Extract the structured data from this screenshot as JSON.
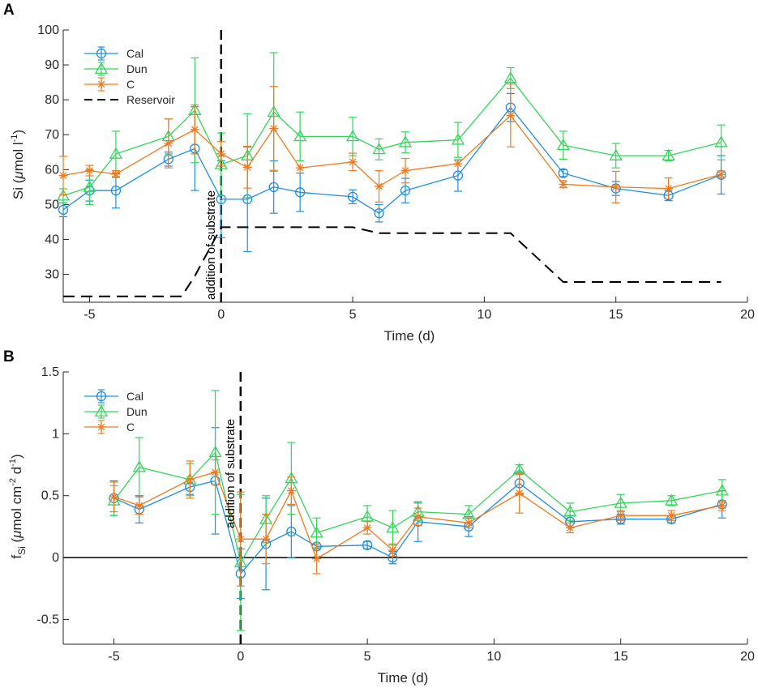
{
  "colors": {
    "Cal": "#1f8fe0",
    "Dun": "#33d65a",
    "C": "#f07a1e",
    "Reservoir": "#000000"
  },
  "chart_data": [
    {
      "panel": "A",
      "type": "line",
      "title": "",
      "xlabel": "Time (d)",
      "ylabel_prefix": "Si (",
      "ylabel_mu": "μ",
      "ylabel_mid": "mol l",
      "ylabel_sup": "-1",
      "ylabel_suffix": ")",
      "xlim": [
        -6,
        20
      ],
      "ylim": [
        22,
        100
      ],
      "xticks": [
        -5,
        0,
        5,
        10,
        15,
        20
      ],
      "xtick_labels": [
        "-5",
        "0",
        "5",
        "10",
        "15",
        "20"
      ],
      "yticks": [
        30,
        40,
        50,
        60,
        70,
        80,
        90,
        100
      ],
      "ytick_labels": [
        "30",
        "40",
        "50",
        "60",
        "70",
        "80",
        "90",
        "100"
      ],
      "zero_line": false,
      "annotation": "addition of substrate",
      "annotation_x": 0,
      "legend": [
        "Cal",
        "Dun",
        "C",
        "Reservoir"
      ],
      "legend_position": "top-left",
      "series": [
        {
          "name": "Cal",
          "marker": "circle",
          "x": [
            -6,
            -5,
            -4,
            -2,
            -1,
            0,
            1,
            2,
            3,
            5,
            6,
            7,
            9,
            11,
            13,
            15,
            17,
            19
          ],
          "y": [
            48.5,
            54,
            54,
            63,
            66,
            51.5,
            51.5,
            55,
            53.5,
            52.2,
            47.5,
            54,
            58.3,
            77.8,
            59,
            54.6,
            52.6,
            58.5
          ],
          "err": [
            2,
            3,
            5,
            2,
            12,
            11,
            15,
            7.5,
            5.5,
            2,
            2.5,
            3.5,
            4.5,
            4,
            1,
            2,
            1.5,
            5.5
          ]
        },
        {
          "name": "Dun",
          "marker": "triangle",
          "x": [
            -6,
            -5,
            -4,
            -2,
            -1,
            0,
            1,
            2,
            3,
            5,
            6,
            7,
            9,
            11,
            13,
            15,
            17,
            19
          ],
          "y": [
            52.5,
            55,
            64.5,
            69.5,
            77,
            61.5,
            64,
            76.5,
            69.5,
            69.5,
            65.8,
            67.8,
            68.5,
            86.2,
            67,
            64,
            64,
            67.8
          ],
          "err": [
            2,
            5,
            6.5,
            5,
            15,
            9,
            12,
            17,
            7,
            5.5,
            3,
            3,
            5,
            3,
            4,
            3.5,
            1.5,
            5
          ]
        },
        {
          "name": "C",
          "marker": "asterisk",
          "x": [
            -6,
            -5,
            -4,
            -2,
            -1,
            0,
            1,
            2,
            3,
            5,
            6,
            7,
            9,
            11,
            13,
            15,
            17,
            19
          ],
          "y": [
            58.3,
            59.7,
            58.7,
            67.5,
            71.5,
            64.5,
            60.7,
            71.8,
            60.5,
            62.2,
            55.2,
            59.7,
            61.7,
            75.5,
            55.8,
            55,
            54.6,
            58.6
          ],
          "err": [
            5.5,
            1.5,
            1,
            7,
            7,
            3.5,
            6,
            12,
            0,
            2.5,
            4.5,
            3.5,
            0,
            9,
            1,
            4.5,
            3,
            1
          ]
        },
        {
          "name": "Reservoir",
          "marker": "none",
          "style": "dashed",
          "x": [
            -6,
            -1.5,
            -1,
            0,
            0,
            5,
            6,
            11,
            13,
            19
          ],
          "y": [
            23.7,
            23.7,
            29.5,
            43.5,
            43.5,
            43.5,
            41.8,
            41.8,
            27.8,
            27.8
          ]
        }
      ]
    },
    {
      "panel": "B",
      "type": "line",
      "title": "",
      "xlabel": "Time (d)",
      "ylabel_prefix": "f",
      "ylabel_sub": "Si",
      "ylabel_open": " (",
      "ylabel_mu": "μ",
      "ylabel_mid": "mol cm",
      "ylabel_sup1": "-2",
      "ylabel_mid2": " d",
      "ylabel_sup2": "-1",
      "ylabel_suffix": ")",
      "xlim": [
        -7,
        20
      ],
      "ylim": [
        -0.7,
        1.5
      ],
      "xticks": [
        -5,
        0,
        5,
        10,
        15,
        20
      ],
      "xtick_labels": [
        "-5",
        "0",
        "5",
        "10",
        "15",
        "20"
      ],
      "yticks": [
        -0.5,
        0,
        0.5,
        1,
        1.5
      ],
      "ytick_labels": [
        "-0.5",
        "0",
        "0.5",
        "1",
        "1.5"
      ],
      "zero_line": true,
      "annotation": "addition of substrate",
      "annotation_x": 0,
      "legend": [
        "Cal",
        "Dun",
        "C"
      ],
      "legend_position": "top-left",
      "series": [
        {
          "name": "Cal",
          "marker": "circle",
          "x": [
            -5,
            -4,
            -2,
            -1,
            0,
            1,
            2,
            3,
            5,
            6,
            7,
            9,
            11,
            13,
            15,
            17,
            19
          ],
          "y": [
            0.48,
            0.39,
            0.57,
            0.62,
            -0.13,
            0.11,
            0.21,
            0.09,
            0.1,
            0.0,
            0.29,
            0.25,
            0.6,
            0.29,
            0.31,
            0.31,
            0.43
          ],
          "err": [
            0.14,
            0.11,
            0.06,
            0.43,
            0.2,
            0.37,
            0.21,
            0.02,
            0.03,
            0.05,
            0.16,
            0.08,
            0.09,
            0.05,
            0.04,
            0.03,
            0.11
          ]
        },
        {
          "name": "Dun",
          "marker": "triangle",
          "x": [
            -5,
            -4,
            -2,
            -1,
            0,
            1,
            2,
            3,
            5,
            6,
            7,
            9,
            11,
            13,
            15,
            17,
            19
          ],
          "y": [
            0.46,
            0.73,
            0.63,
            0.85,
            -0.04,
            0.31,
            0.64,
            0.2,
            0.33,
            0.24,
            0.37,
            0.35,
            0.71,
            0.37,
            0.44,
            0.46,
            0.54
          ],
          "err": [
            0.12,
            0.24,
            0.13,
            0.5,
            0.55,
            0.19,
            0.29,
            0.12,
            0.09,
            0.14,
            0.07,
            0.07,
            0.04,
            0.07,
            0.07,
            0.04,
            0.09
          ]
        },
        {
          "name": "C",
          "marker": "asterisk",
          "x": [
            -5,
            -4,
            -2,
            -1,
            0,
            1,
            2,
            3,
            5,
            6,
            7,
            9,
            11,
            13,
            15,
            17,
            19
          ],
          "y": [
            0.49,
            0.42,
            0.63,
            0.69,
            0.15,
            0.15,
            0.54,
            -0.01,
            0.24,
            0.06,
            0.33,
            0.28,
            0.52,
            0.24,
            0.34,
            0.34,
            0.42
          ],
          "err": [
            0.12,
            0.07,
            0.15,
            0.1,
            0.38,
            0.2,
            0.11,
            0.12,
            0.05,
            0.05,
            0.07,
            0.04,
            0.16,
            0.04,
            0.04,
            0.04,
            0.04
          ]
        }
      ]
    }
  ]
}
